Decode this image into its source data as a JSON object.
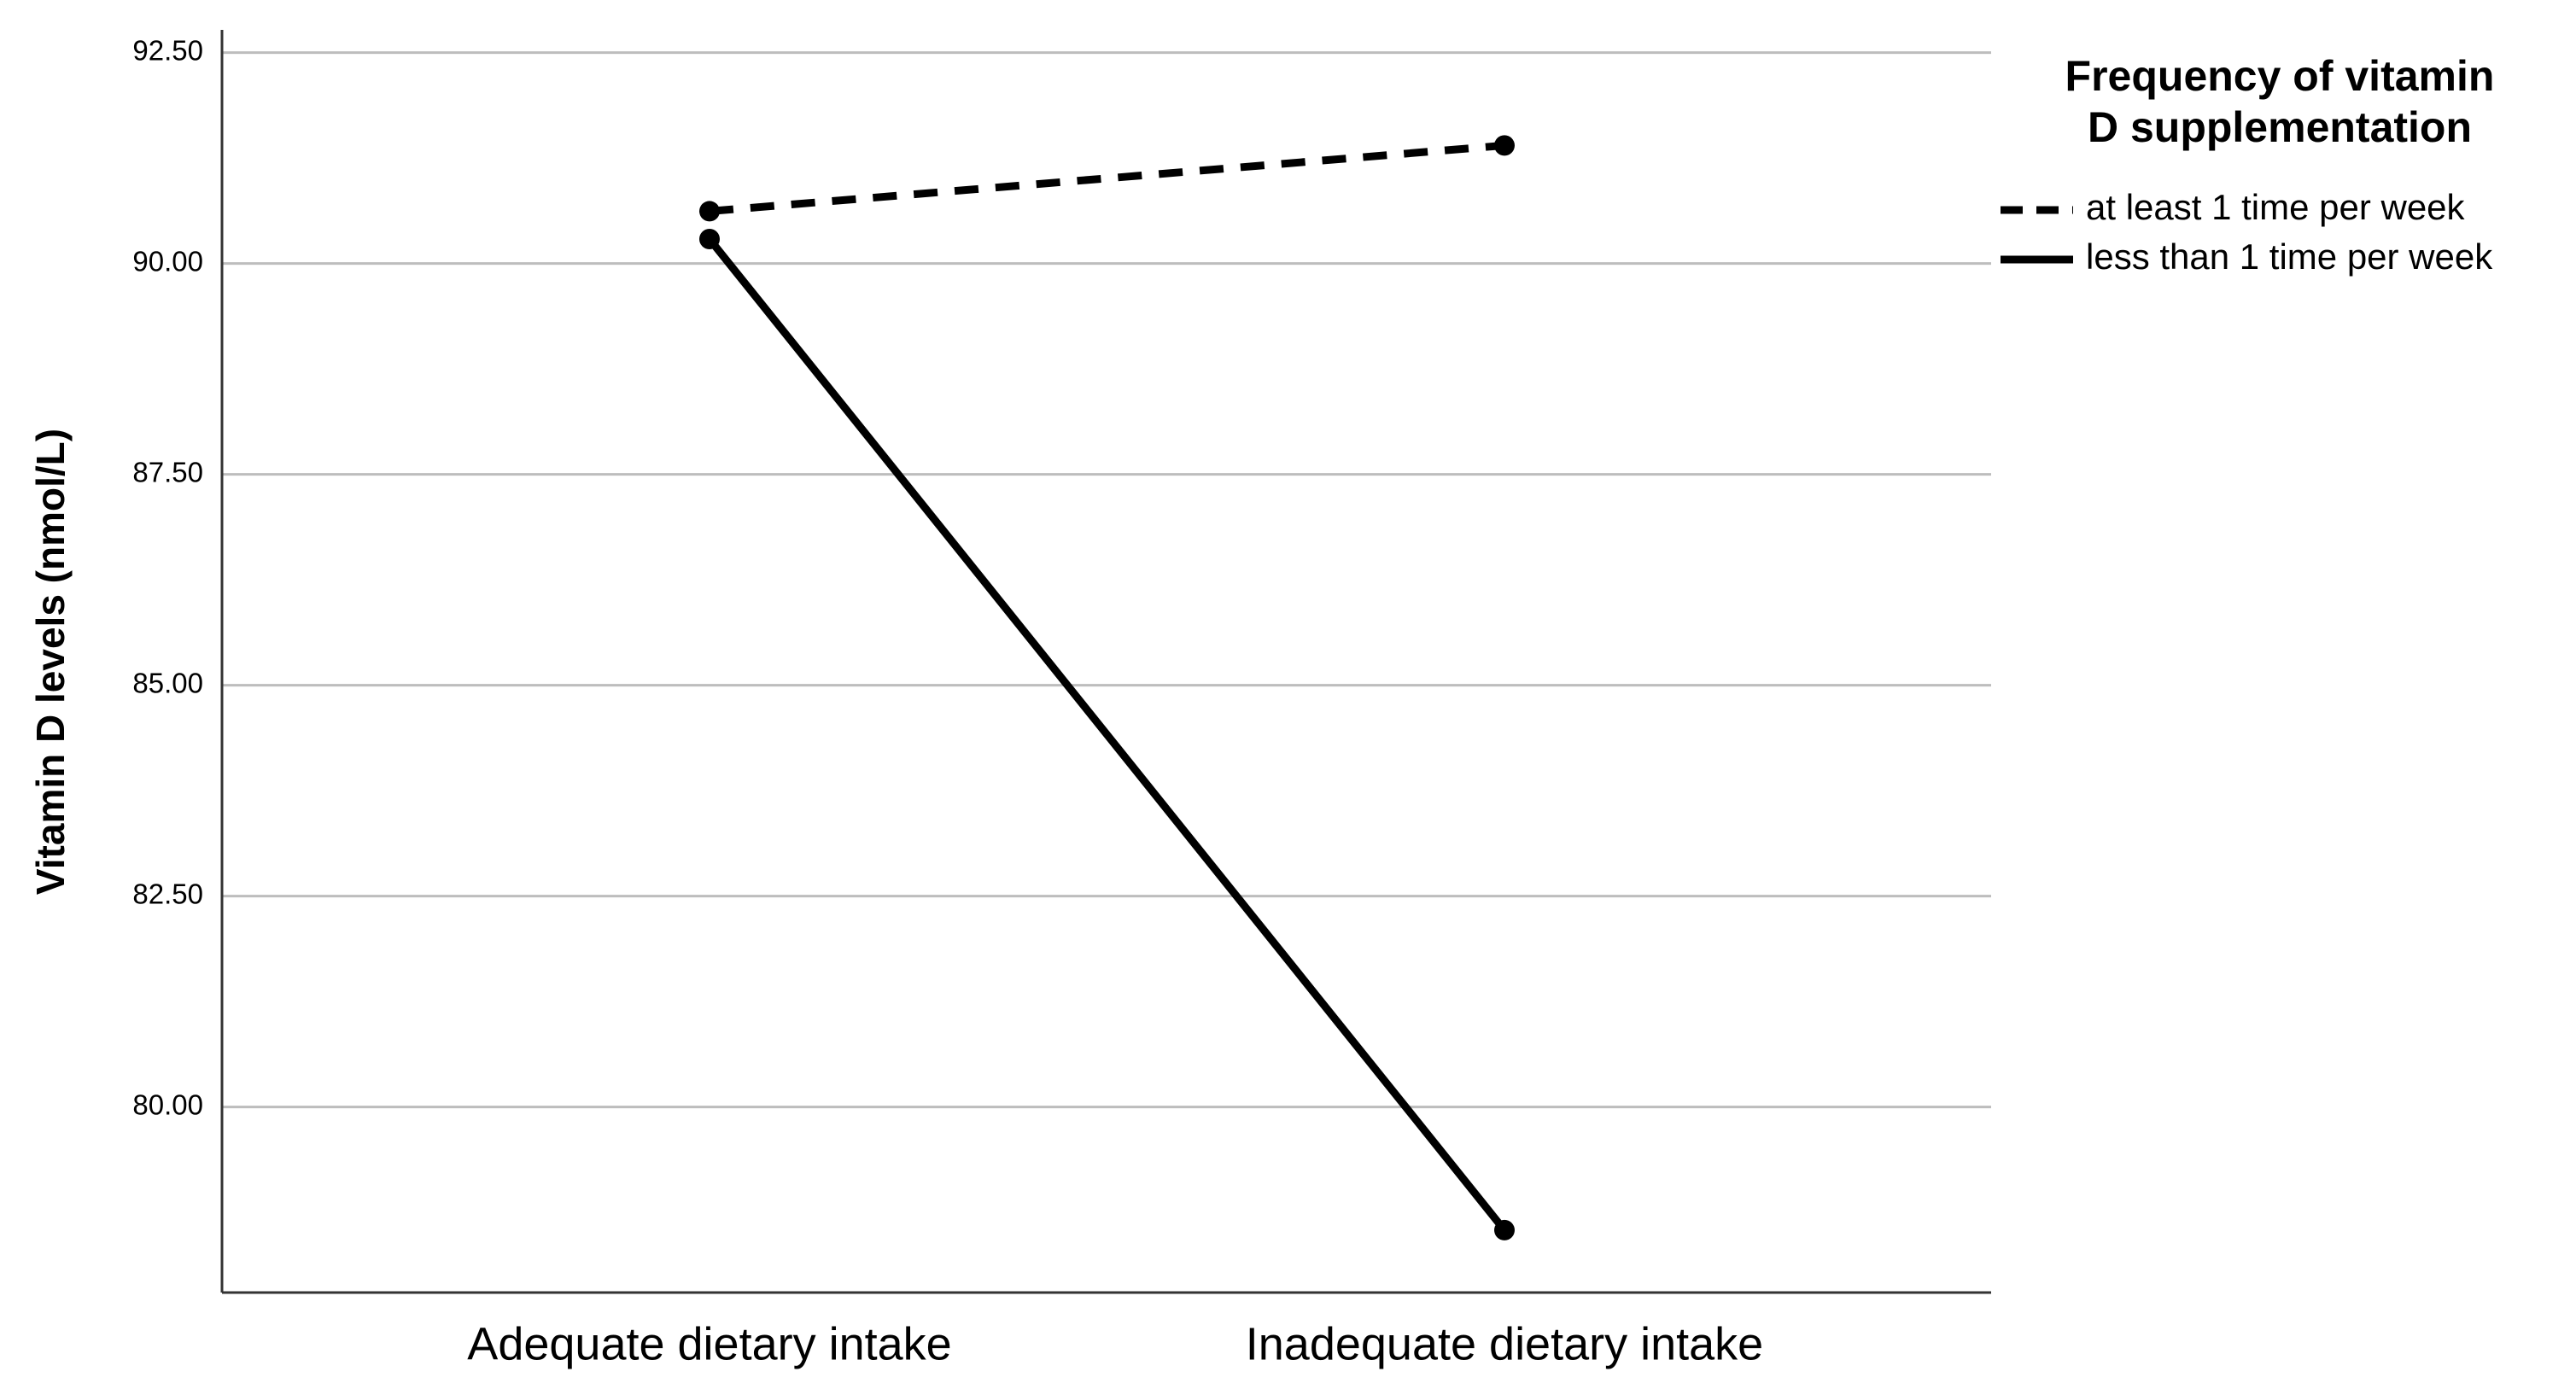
{
  "chart_data": {
    "type": "line",
    "y_label": "Vitamin D levels (nmol/L)",
    "categories": [
      "Adequate dietary intake",
      "Inadequate dietary intake"
    ],
    "legend_title": "Frequency of vitamin D supplementation",
    "legend_position": "top-right-outside",
    "series": [
      {
        "name": "at least 1 time per week",
        "color": "#000000",
        "line_style": "dashed",
        "values": [
          90.62,
          91.4
        ]
      },
      {
        "name": "less than 1 time per week",
        "color": "#000000",
        "line_style": "solid",
        "values": [
          90.29,
          78.54
        ]
      }
    ],
    "ylim": [
      77.8,
      92.77
    ],
    "yticks": [
      {
        "value": 80,
        "label": "80.00"
      },
      {
        "value": 82.5,
        "label": "82.50"
      },
      {
        "value": 85,
        "label": "85.00"
      },
      {
        "value": 87.5,
        "label": "87.50"
      },
      {
        "value": 90,
        "label": "90.00"
      },
      {
        "value": 92.5,
        "label": "92.50"
      }
    ],
    "grid": true
  }
}
